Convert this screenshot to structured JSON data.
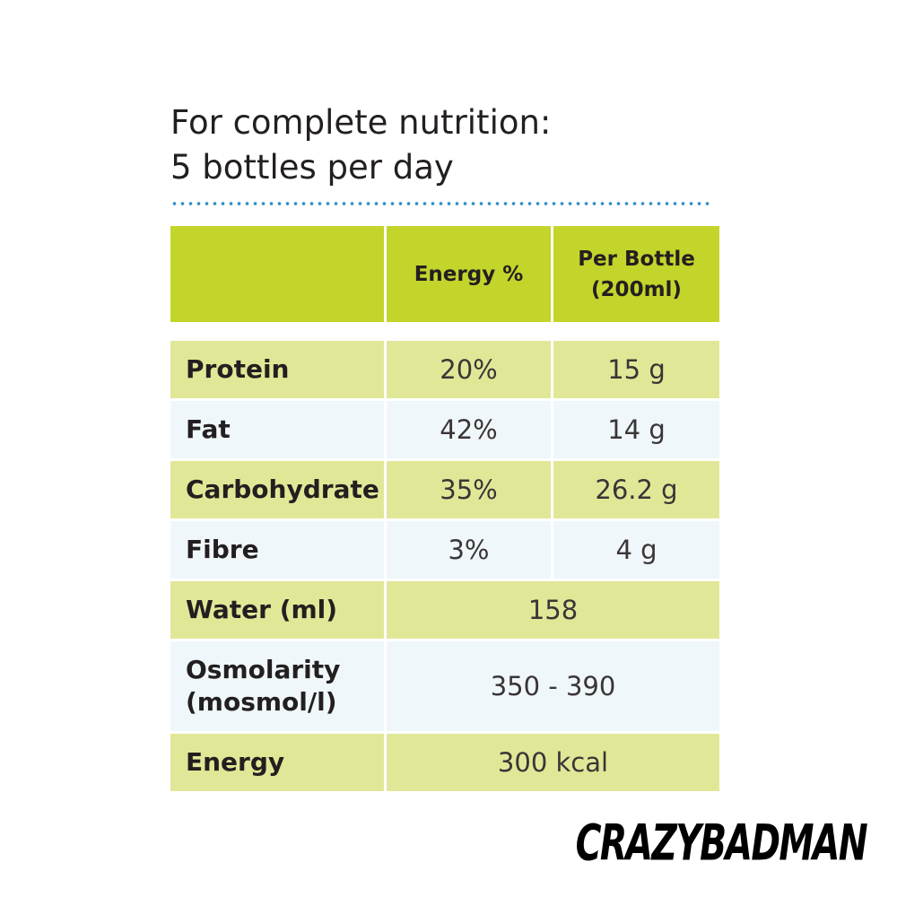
{
  "heading": {
    "line1": "For complete nutrition:",
    "line2": "5 bottles per day"
  },
  "table": {
    "header": {
      "col1": "",
      "col2": "Energy %",
      "col3_line1": "Per Bottle",
      "col3_line2": "(200ml)"
    },
    "rows": [
      {
        "label": "Protein",
        "energy_pct": "20%",
        "per_bottle": "15 g"
      },
      {
        "label": "Fat",
        "energy_pct": "42%",
        "per_bottle": "14 g"
      },
      {
        "label": "Carbohydrate",
        "energy_pct": "35%",
        "per_bottle": "26.2 g"
      },
      {
        "label": "Fibre",
        "energy_pct": "3%",
        "per_bottle": "4 g"
      }
    ],
    "merged_rows": [
      {
        "label": "Water (ml)",
        "value": "158"
      },
      {
        "label_line1": "Osmolarity",
        "label_line2": "(mosmol/l)",
        "value": "350 - 390"
      },
      {
        "label": "Energy",
        "value": "300 kcal"
      }
    ]
  },
  "watermark": "CRAZYBADMAN",
  "colors": {
    "header_green": "#c3d42b",
    "row_green": "#e0e897",
    "row_blue": "#eff7fb",
    "dots_blue": "#2f8fc9",
    "text": "#231f20"
  }
}
